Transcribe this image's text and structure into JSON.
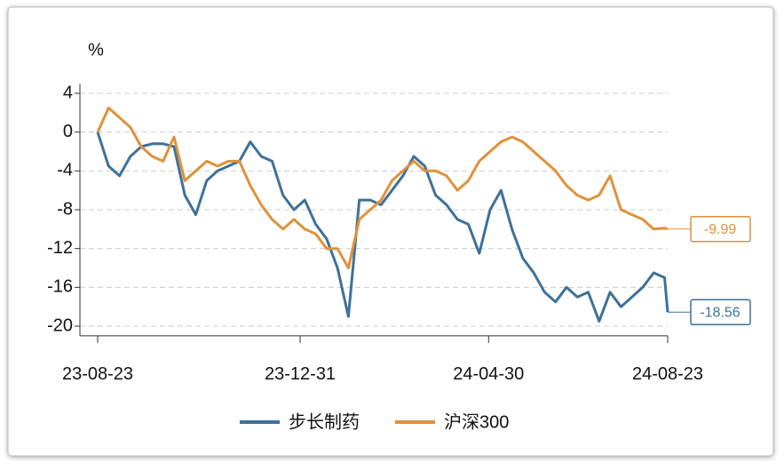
{
  "chart_data": {
    "type": "line",
    "y_label": "%",
    "x": [
      "23-08-23",
      "23-08-30",
      "23-09-06",
      "23-09-13",
      "23-09-20",
      "23-09-27",
      "23-10-04",
      "23-10-11",
      "23-10-18",
      "23-10-25",
      "23-11-01",
      "23-11-08",
      "23-11-15",
      "23-11-22",
      "23-11-29",
      "23-12-06",
      "23-12-13",
      "23-12-20",
      "23-12-27",
      "24-01-03",
      "24-01-10",
      "24-01-17",
      "24-01-24",
      "24-01-31",
      "24-02-07",
      "24-02-14",
      "24-02-21",
      "24-02-28",
      "24-03-06",
      "24-03-13",
      "24-03-20",
      "24-03-27",
      "24-04-03",
      "24-04-10",
      "24-04-17",
      "24-04-24",
      "24-05-01",
      "24-05-08",
      "24-05-15",
      "24-05-22",
      "24-05-29",
      "24-06-05",
      "24-06-12",
      "24-06-19",
      "24-06-26",
      "24-07-03",
      "24-07-10",
      "24-07-17",
      "24-07-24",
      "24-07-31",
      "24-08-07",
      "24-08-14",
      "24-08-21",
      "24-08-23"
    ],
    "series": [
      {
        "name": "步长制药",
        "color": "#3e7199",
        "values": [
          0,
          -3.5,
          -4.5,
          -2.5,
          -1.5,
          -1.2,
          -1.2,
          -1.5,
          -6.5,
          -8.5,
          -5,
          -4,
          -3.5,
          -3,
          -1,
          -2.5,
          -3,
          -6.5,
          -8,
          -7,
          -9.5,
          -11,
          -14,
          -19,
          -7,
          -7,
          -7.5,
          -6,
          -4.5,
          -2.5,
          -3.5,
          -6.5,
          -7.5,
          -9,
          -9.5,
          -12.5,
          -8,
          -6,
          -10,
          -13,
          -14.5,
          -16.5,
          -17.5,
          -16,
          -17,
          -16.5,
          -19.5,
          -16.5,
          -18,
          -17,
          -16,
          -14.5,
          -15,
          -18.56
        ]
      },
      {
        "name": "沪深300",
        "color": "#e0913a",
        "values": [
          0,
          2.5,
          1.5,
          0.5,
          -1.5,
          -2.5,
          -3,
          -0.5,
          -5,
          -4,
          -3,
          -3.5,
          -3,
          -3,
          -5.5,
          -7.5,
          -9,
          -10,
          -9,
          -10,
          -10.5,
          -12,
          -12,
          -14,
          -9,
          -8,
          -7,
          -5,
          -4,
          -3,
          -4,
          -4,
          -4.5,
          -6,
          -5,
          -3,
          -2,
          -1,
          -0.5,
          -1,
          -2,
          -3,
          -4,
          -5.5,
          -6.5,
          -7,
          -6.5,
          -4.5,
          -8,
          -8.5,
          -9,
          -10,
          -9.9,
          -9.99
        ]
      }
    ],
    "xlim": [
      "23-08-23",
      "24-08-23"
    ],
    "xticks": [
      "23-08-23",
      "23-12-31",
      "24-04-30",
      "24-08-23"
    ],
    "ylim": [
      -21,
      5
    ],
    "yticks": [
      4,
      0,
      -4,
      -8,
      -12,
      -16,
      -20
    ],
    "grid": true,
    "legend": "bottom"
  }
}
